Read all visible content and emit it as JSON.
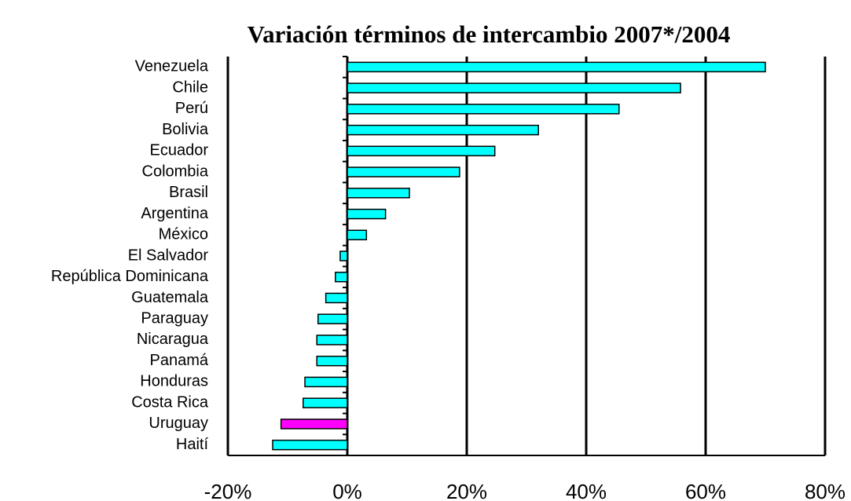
{
  "chart_data": {
    "type": "hbar",
    "title": "Variación términos de intercambio 2007*/2004",
    "categories": [
      "Venezuela",
      "Chile",
      "Perú",
      "Bolivia",
      "Ecuador",
      "Colombia",
      "Brasil",
      "Argentina",
      "México",
      "El Salvador",
      "República Dominicana",
      "Guatemala",
      "Paraguay",
      "Nicaragua",
      "Panamá",
      "Honduras",
      "Costa Rica",
      "Uruguay",
      "Haití"
    ],
    "values": [
      70,
      55.8,
      45.5,
      32,
      24.7,
      18.8,
      10.4,
      6.4,
      3.2,
      -1.2,
      -2.0,
      -3.6,
      -4.9,
      -5.1,
      -5.1,
      -7.1,
      -7.4,
      -11.1,
      -12.5
    ],
    "colors": [
      "#00ffff",
      "#00ffff",
      "#00ffff",
      "#00ffff",
      "#00ffff",
      "#00ffff",
      "#00ffff",
      "#00ffff",
      "#00ffff",
      "#00ffff",
      "#00ffff",
      "#00ffff",
      "#00ffff",
      "#00ffff",
      "#00ffff",
      "#00ffff",
      "#00ffff",
      "#ff00ff",
      "#00ffff"
    ],
    "xlim": [
      -20,
      80
    ],
    "xticks": [
      {
        "value": -20,
        "label": "-20%"
      },
      {
        "value": 0,
        "label": "0%"
      },
      {
        "value": 20,
        "label": "20%"
      },
      {
        "value": 40,
        "label": "40%"
      },
      {
        "value": 60,
        "label": "60%"
      },
      {
        "value": 80,
        "label": "80%"
      }
    ],
    "grid": true
  }
}
